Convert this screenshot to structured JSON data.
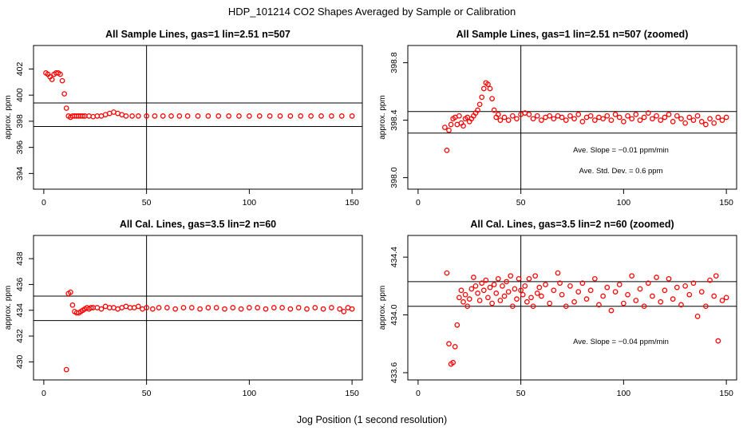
{
  "figure": {
    "title": "HDP_101214  CO2 Shapes Averaged by Sample or Calibration",
    "xlabel": "Jog Position (1 second resolution)"
  },
  "colors": {
    "points": "#ff0000",
    "axes": "#000000",
    "background": "#ffffff"
  },
  "chart_data": [
    {
      "type": "scatter",
      "title": "All Sample Lines, gas=1 lin=2.51 n=507",
      "xlabel": "",
      "ylabel": "approx. ppm",
      "xlim": [
        -5,
        155
      ],
      "ylim": [
        392.8,
        403.8
      ],
      "xticks": [
        0,
        50,
        100,
        150
      ],
      "yticks": [
        394,
        396,
        398,
        400,
        402
      ],
      "vlines": [
        50
      ],
      "hlines": [
        397.6,
        399.4
      ],
      "annotations": [],
      "points": [
        [
          1,
          401.7
        ],
        [
          2,
          401.6
        ],
        [
          3,
          401.4
        ],
        [
          4,
          401.2
        ],
        [
          5,
          401.6
        ],
        [
          6,
          401.7
        ],
        [
          7,
          401.7
        ],
        [
          8,
          401.6
        ],
        [
          9,
          401.1
        ],
        [
          10,
          400.1
        ],
        [
          11,
          399.0
        ],
        [
          12,
          398.4
        ],
        [
          13,
          398.3
        ],
        [
          14,
          398.4
        ],
        [
          15,
          398.4
        ],
        [
          16,
          398.4
        ],
        [
          17,
          398.4
        ],
        [
          18,
          398.4
        ],
        [
          19,
          398.4
        ],
        [
          20,
          398.4
        ],
        [
          22,
          398.4
        ],
        [
          24,
          398.35
        ],
        [
          26,
          398.4
        ],
        [
          28,
          398.4
        ],
        [
          30,
          398.5
        ],
        [
          32,
          398.6
        ],
        [
          34,
          398.7
        ],
        [
          36,
          398.6
        ],
        [
          38,
          398.5
        ],
        [
          40,
          398.4
        ],
        [
          43,
          398.4
        ],
        [
          46,
          398.4
        ],
        [
          50,
          398.4
        ],
        [
          54,
          398.4
        ],
        [
          58,
          398.4
        ],
        [
          62,
          398.4
        ],
        [
          66,
          398.4
        ],
        [
          70,
          398.4
        ],
        [
          75,
          398.4
        ],
        [
          80,
          398.4
        ],
        [
          85,
          398.4
        ],
        [
          90,
          398.4
        ],
        [
          95,
          398.4
        ],
        [
          100,
          398.4
        ],
        [
          105,
          398.4
        ],
        [
          110,
          398.4
        ],
        [
          115,
          398.4
        ],
        [
          120,
          398.4
        ],
        [
          125,
          398.4
        ],
        [
          130,
          398.4
        ],
        [
          135,
          398.4
        ],
        [
          140,
          398.4
        ],
        [
          145,
          398.4
        ],
        [
          150,
          398.4
        ]
      ]
    },
    {
      "type": "scatter",
      "title": "All Sample Lines, gas=1 lin=2.51 n=507 (zoomed)",
      "xlabel": "",
      "ylabel": "approx. ppm",
      "xlim": [
        -5,
        155
      ],
      "ylim": [
        397.92,
        398.92
      ],
      "xticks": [
        0,
        50,
        100,
        150
      ],
      "yticks": [
        398.0,
        398.4,
        398.8
      ],
      "vlines": [
        50
      ],
      "hlines": [
        398.46,
        398.31
      ],
      "annotations": [
        "Ave. Slope =  −0.01  ppm/min",
        "Ave. Std. Dev. =  0.6  ppm"
      ],
      "points": [
        [
          13,
          398.35
        ],
        [
          14,
          398.19
        ],
        [
          15,
          398.33
        ],
        [
          16,
          398.37
        ],
        [
          17,
          398.41
        ],
        [
          18,
          398.42
        ],
        [
          19,
          398.37
        ],
        [
          20,
          398.43
        ],
        [
          21,
          398.38
        ],
        [
          22,
          398.36
        ],
        [
          23,
          398.41
        ],
        [
          24,
          398.42
        ],
        [
          25,
          398.39
        ],
        [
          26,
          398.41
        ],
        [
          27,
          398.43
        ],
        [
          28,
          398.45
        ],
        [
          29,
          398.47
        ],
        [
          30,
          398.51
        ],
        [
          31,
          398.56
        ],
        [
          32,
          398.62
        ],
        [
          33,
          398.66
        ],
        [
          34,
          398.65
        ],
        [
          35,
          398.62
        ],
        [
          36,
          398.55
        ],
        [
          37,
          398.47
        ],
        [
          38,
          398.42
        ],
        [
          39,
          398.44
        ],
        [
          40,
          398.4
        ],
        [
          42,
          398.42
        ],
        [
          44,
          398.4
        ],
        [
          46,
          398.43
        ],
        [
          48,
          398.41
        ],
        [
          50,
          398.44
        ],
        [
          52,
          398.45
        ],
        [
          54,
          398.44
        ],
        [
          56,
          398.41
        ],
        [
          58,
          398.43
        ],
        [
          60,
          398.4
        ],
        [
          62,
          398.42
        ],
        [
          64,
          398.43
        ],
        [
          66,
          398.41
        ],
        [
          68,
          398.43
        ],
        [
          70,
          398.42
        ],
        [
          72,
          398.4
        ],
        [
          74,
          398.43
        ],
        [
          76,
          398.41
        ],
        [
          78,
          398.44
        ],
        [
          80,
          398.39
        ],
        [
          82,
          398.42
        ],
        [
          84,
          398.43
        ],
        [
          86,
          398.4
        ],
        [
          88,
          398.42
        ],
        [
          90,
          398.41
        ],
        [
          92,
          398.43
        ],
        [
          94,
          398.4
        ],
        [
          96,
          398.44
        ],
        [
          98,
          398.42
        ],
        [
          100,
          398.39
        ],
        [
          102,
          398.43
        ],
        [
          104,
          398.41
        ],
        [
          106,
          398.44
        ],
        [
          108,
          398.4
        ],
        [
          110,
          398.42
        ],
        [
          112,
          398.45
        ],
        [
          114,
          398.41
        ],
        [
          116,
          398.43
        ],
        [
          118,
          398.4
        ],
        [
          120,
          398.42
        ],
        [
          122,
          398.44
        ],
        [
          124,
          398.39
        ],
        [
          126,
          398.43
        ],
        [
          128,
          398.41
        ],
        [
          130,
          398.38
        ],
        [
          132,
          398.42
        ],
        [
          134,
          398.4
        ],
        [
          136,
          398.43
        ],
        [
          138,
          398.39
        ],
        [
          140,
          398.37
        ],
        [
          142,
          398.41
        ],
        [
          144,
          398.38
        ],
        [
          146,
          398.42
        ],
        [
          148,
          398.4
        ],
        [
          150,
          398.42
        ]
      ]
    },
    {
      "type": "scatter",
      "title": "All Cal. Lines, gas=3.5 lin=2 n=60",
      "xlabel": "",
      "ylabel": "approx. ppm",
      "xlim": [
        -5,
        155
      ],
      "ylim": [
        428.6,
        439.8
      ],
      "xticks": [
        0,
        50,
        100,
        150
      ],
      "yticks": [
        430,
        432,
        434,
        436,
        438
      ],
      "vlines": [
        50
      ],
      "hlines": [
        433.2,
        435.1
      ],
      "annotations": [],
      "points": [
        [
          11,
          429.4
        ],
        [
          12,
          435.3
        ],
        [
          13,
          435.4
        ],
        [
          14,
          434.4
        ],
        [
          15,
          433.9
        ],
        [
          16,
          433.8
        ],
        [
          17,
          433.8
        ],
        [
          18,
          433.9
        ],
        [
          19,
          434.0
        ],
        [
          20,
          434.1
        ],
        [
          21,
          434.2
        ],
        [
          22,
          434.1
        ],
        [
          23,
          434.2
        ],
        [
          24,
          434.2
        ],
        [
          26,
          434.2
        ],
        [
          28,
          434.1
        ],
        [
          30,
          434.3
        ],
        [
          32,
          434.2
        ],
        [
          34,
          434.2
        ],
        [
          36,
          434.1
        ],
        [
          38,
          434.2
        ],
        [
          40,
          434.3
        ],
        [
          42,
          434.2
        ],
        [
          44,
          434.2
        ],
        [
          46,
          434.3
        ],
        [
          48,
          434.1
        ],
        [
          50,
          434.2
        ],
        [
          53,
          434.1
        ],
        [
          56,
          434.2
        ],
        [
          60,
          434.2
        ],
        [
          64,
          434.1
        ],
        [
          68,
          434.2
        ],
        [
          72,
          434.2
        ],
        [
          76,
          434.1
        ],
        [
          80,
          434.2
        ],
        [
          84,
          434.2
        ],
        [
          88,
          434.1
        ],
        [
          92,
          434.2
        ],
        [
          96,
          434.1
        ],
        [
          100,
          434.2
        ],
        [
          104,
          434.2
        ],
        [
          108,
          434.1
        ],
        [
          112,
          434.2
        ],
        [
          116,
          434.2
        ],
        [
          120,
          434.1
        ],
        [
          124,
          434.2
        ],
        [
          128,
          434.1
        ],
        [
          132,
          434.2
        ],
        [
          136,
          434.1
        ],
        [
          140,
          434.2
        ],
        [
          144,
          434.1
        ],
        [
          146,
          433.9
        ],
        [
          148,
          434.2
        ],
        [
          150,
          434.1
        ]
      ]
    },
    {
      "type": "scatter",
      "title": "All Cal. Lines, gas=3.5 lin=2 n=60 (zoomed)",
      "xlabel": "",
      "ylabel": "approx. ppm",
      "xlim": [
        -5,
        155
      ],
      "ylim": [
        433.55,
        434.55
      ],
      "xticks": [
        0,
        50,
        100,
        150
      ],
      "yticks": [
        433.6,
        434.0,
        434.4
      ],
      "vlines": [
        50
      ],
      "hlines": [
        434.23,
        434.06
      ],
      "annotations": [
        "Ave. Slope =  −0.04  ppm/min"
      ],
      "points": [
        [
          14,
          434.29
        ],
        [
          15,
          433.8
        ],
        [
          16,
          433.66
        ],
        [
          17,
          433.67
        ],
        [
          18,
          433.78
        ],
        [
          19,
          433.93
        ],
        [
          20,
          434.12
        ],
        [
          21,
          434.17
        ],
        [
          22,
          434.09
        ],
        [
          23,
          434.14
        ],
        [
          24,
          434.06
        ],
        [
          25,
          434.11
        ],
        [
          26,
          434.18
        ],
        [
          27,
          434.26
        ],
        [
          28,
          434.2
        ],
        [
          29,
          434.15
        ],
        [
          30,
          434.1
        ],
        [
          31,
          434.22
        ],
        [
          32,
          434.17
        ],
        [
          33,
          434.24
        ],
        [
          34,
          434.12
        ],
        [
          35,
          434.19
        ],
        [
          36,
          434.08
        ],
        [
          37,
          434.21
        ],
        [
          38,
          434.15
        ],
        [
          39,
          434.25
        ],
        [
          40,
          434.1
        ],
        [
          41,
          434.2
        ],
        [
          42,
          434.13
        ],
        [
          43,
          434.23
        ],
        [
          44,
          434.16
        ],
        [
          45,
          434.27
        ],
        [
          46,
          434.06
        ],
        [
          47,
          434.18
        ],
        [
          48,
          434.11
        ],
        [
          49,
          434.25
        ],
        [
          50,
          434.17
        ],
        [
          51,
          434.14
        ],
        [
          52,
          434.2
        ],
        [
          53,
          434.09
        ],
        [
          54,
          434.25
        ],
        [
          55,
          434.12
        ],
        [
          56,
          434.06
        ],
        [
          57,
          434.27
        ],
        [
          58,
          434.15
        ],
        [
          59,
          434.19
        ],
        [
          60,
          434.13
        ],
        [
          62,
          434.21
        ],
        [
          64,
          434.08
        ],
        [
          66,
          434.17
        ],
        [
          68,
          434.29
        ],
        [
          69,
          434.22
        ],
        [
          70,
          434.14
        ],
        [
          72,
          434.06
        ],
        [
          74,
          434.2
        ],
        [
          76,
          434.09
        ],
        [
          78,
          434.16
        ],
        [
          80,
          434.22
        ],
        [
          82,
          434.11
        ],
        [
          84,
          434.17
        ],
        [
          86,
          434.25
        ],
        [
          88,
          434.07
        ],
        [
          90,
          434.13
        ],
        [
          92,
          434.19
        ],
        [
          94,
          434.03
        ],
        [
          96,
          434.16
        ],
        [
          98,
          434.21
        ],
        [
          100,
          434.08
        ],
        [
          102,
          434.14
        ],
        [
          104,
          434.27
        ],
        [
          106,
          434.1
        ],
        [
          108,
          434.18
        ],
        [
          110,
          434.06
        ],
        [
          112,
          434.22
        ],
        [
          114,
          434.13
        ],
        [
          116,
          434.26
        ],
        [
          118,
          434.09
        ],
        [
          120,
          434.17
        ],
        [
          122,
          434.25
        ],
        [
          124,
          434.11
        ],
        [
          126,
          434.19
        ],
        [
          128,
          434.07
        ],
        [
          130,
          434.2
        ],
        [
          132,
          434.14
        ],
        [
          134,
          434.22
        ],
        [
          136,
          433.99
        ],
        [
          138,
          434.16
        ],
        [
          140,
          434.06
        ],
        [
          142,
          434.24
        ],
        [
          144,
          434.13
        ],
        [
          145,
          434.27
        ],
        [
          146,
          433.82
        ],
        [
          148,
          434.1
        ],
        [
          150,
          434.12
        ]
      ]
    }
  ]
}
